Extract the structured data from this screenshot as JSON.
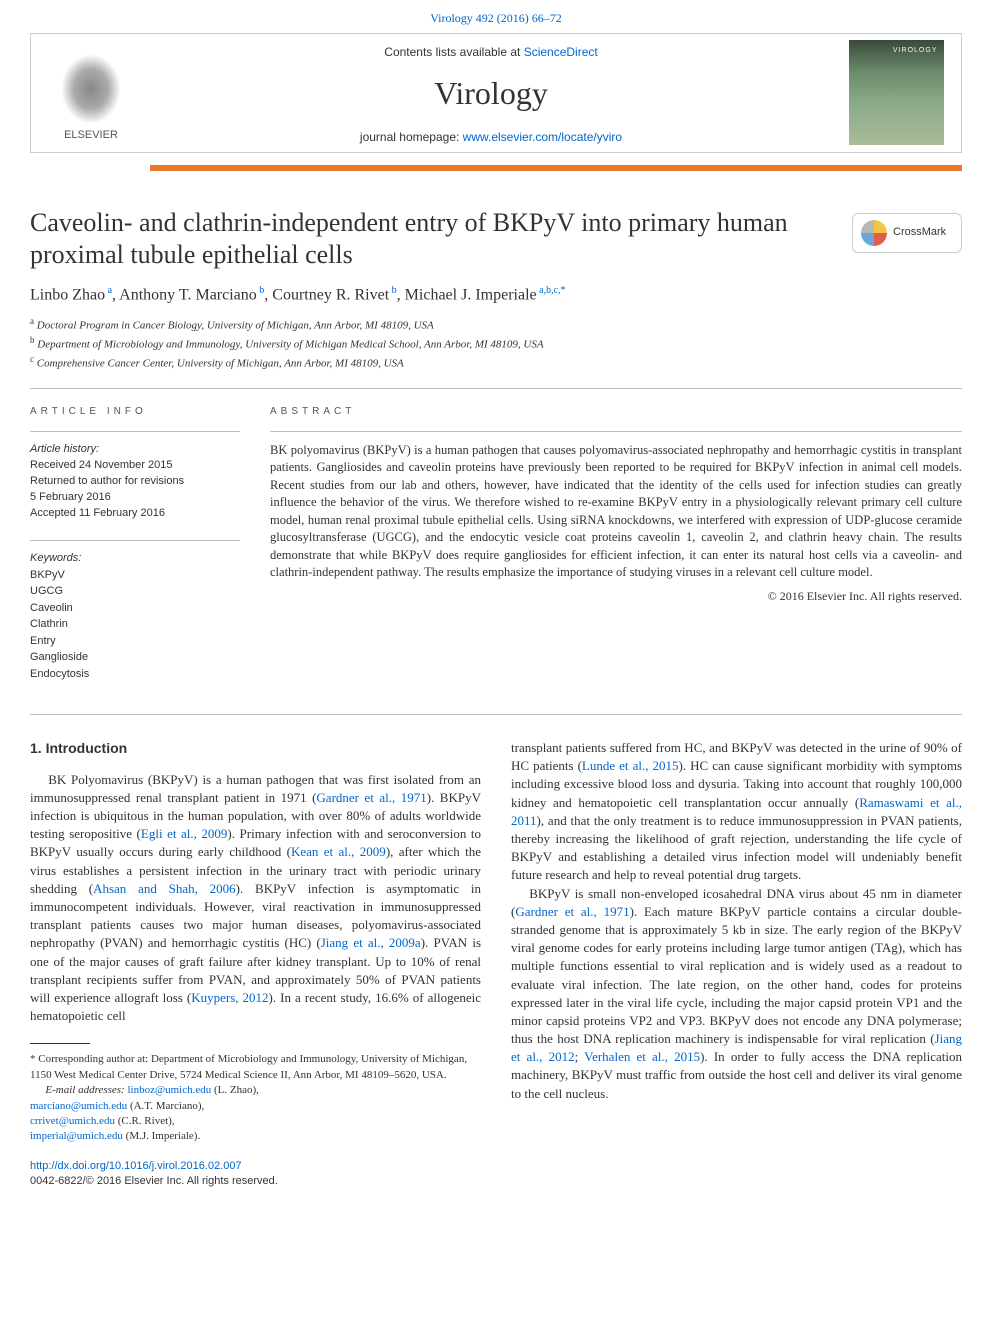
{
  "colors": {
    "link": "#0066cc",
    "orange": "#e8792c",
    "rule": "#bbbbbb",
    "text": "#333333"
  },
  "header": {
    "citation": "Virology 492 (2016) 66–72",
    "contents_prefix": "Contents lists available at ",
    "contents_link": "ScienceDirect",
    "journal": "Virology",
    "homepage_prefix": "journal homepage: ",
    "homepage_link": "www.elsevier.com/locate/yviro",
    "publisher": "ELSEVIER",
    "cover_label": "VIROLOGY"
  },
  "crossmark": {
    "label": "CrossMark"
  },
  "title": "Caveolin- and clathrin-independent entry of BKPyV into primary human proximal tubule epithelial cells",
  "authors_html": "Linbo Zhao <sup>a</sup>, Anthony T. Marciano <sup>b</sup>, Courtney R. Rivet <sup>b</sup>, Michael J. Imperiale <sup>a,b,c,*</sup>",
  "authors": [
    {
      "name": "Linbo Zhao",
      "sup": "a"
    },
    {
      "name": "Anthony T. Marciano",
      "sup": "b"
    },
    {
      "name": "Courtney R. Rivet",
      "sup": "b"
    },
    {
      "name": "Michael J. Imperiale",
      "sup": "a,b,c,*"
    }
  ],
  "affiliations": [
    {
      "sup": "a",
      "text": "Doctoral Program in Cancer Biology, University of Michigan, Ann Arbor, MI 48109, USA"
    },
    {
      "sup": "b",
      "text": "Department of Microbiology and Immunology, University of Michigan Medical School, Ann Arbor, MI 48109, USA"
    },
    {
      "sup": "c",
      "text": "Comprehensive Cancer Center, University of Michigan, Ann Arbor, MI 48109, USA"
    }
  ],
  "article_info": {
    "heading": "ARTICLE INFO",
    "history_label": "Article history:",
    "history": [
      "Received 24 November 2015",
      "Returned to author for revisions",
      "5 February 2016",
      "Accepted 11 February 2016"
    ],
    "keywords_label": "Keywords:",
    "keywords": [
      "BKPyV",
      "UGCG",
      "Caveolin",
      "Clathrin",
      "Entry",
      "Ganglioside",
      "Endocytosis"
    ]
  },
  "abstract": {
    "heading": "ABSTRACT",
    "text": "BK polyomavirus (BKPyV) is a human pathogen that causes polyomavirus-associated nephropathy and hemorrhagic cystitis in transplant patients. Gangliosides and caveolin proteins have previously been reported to be required for BKPyV infection in animal cell models. Recent studies from our lab and others, however, have indicated that the identity of the cells used for infection studies can greatly influence the behavior of the virus. We therefore wished to re-examine BKPyV entry in a physiologically relevant primary cell culture model, human renal proximal tubule epithelial cells. Using siRNA knockdowns, we interfered with expression of UDP-glucose ceramide glucosyltransferase (UGCG), and the endocytic vesicle coat proteins caveolin 1, caveolin 2, and clathrin heavy chain. The results demonstrate that while BKPyV does require gangliosides for efficient infection, it can enter its natural host cells via a caveolin- and clathrin-independent pathway. The results emphasize the importance of studying viruses in a relevant cell culture model.",
    "copyright": "© 2016 Elsevier Inc. All rights reserved."
  },
  "intro": {
    "heading": "1.  Introduction",
    "p1a": "BK Polyomavirus (BKPyV) is a human pathogen that was first isolated from an immunosuppressed renal transplant patient in 1971 (",
    "p1_link1": "Gardner et al., 1971",
    "p1b": "). BKPyV infection is ubiquitous in the human population, with over 80% of adults worldwide testing seropositive (",
    "p1_link2": "Egli et al., 2009",
    "p1c": "). Primary infection with and seroconversion to BKPyV usually occurs during early childhood (",
    "p1_link3": "Kean et al., 2009",
    "p1d": "), after which the virus establishes a persistent infection in the urinary tract with periodic urinary shedding (",
    "p1_link4": "Ahsan and Shah, 2006",
    "p1e": "). BKPyV infection is asymptomatic in immunocompetent individuals. However, viral reactivation in immunosuppressed transplant patients causes two major human diseases, polyomavirus-associated nephropathy (PVAN) and hemorrhagic cystitis (HC) (",
    "p1_link5": "Jiang et al., 2009a",
    "p1f": "). PVAN is one of the major causes of graft failure after kidney transplant. Up to 10% of renal transplant recipients suffer from PVAN, and approximately 50% of PVAN patients will experience allograft loss (",
    "p1_link6": "Kuypers, 2012",
    "p1g": "). In a recent study, 16.6% of allogeneic hematopoietic cell",
    "p2a": "transplant patients suffered from HC, and BKPyV was detected in the urine of 90% of HC patients (",
    "p2_link1": "Lunde et al., 2015",
    "p2b": "). HC can cause significant morbidity with symptoms including excessive blood loss and dysuria. Taking into account that roughly 100,000 kidney and hematopoietic cell transplantation occur annually (",
    "p2_link2": "Ramaswami et al., 2011",
    "p2c": "), and that the only treatment is to reduce immunosuppression in PVAN patients, thereby increasing the likelihood of graft rejection, understanding the life cycle of BKPyV and establishing a detailed virus infection model will undeniably benefit future research and help to reveal potential drug targets.",
    "p3a": "BKPyV is small non-enveloped icosahedral DNA virus about 45 nm in diameter (",
    "p3_link1": "Gardner et al., 1971",
    "p3b": "). Each mature BKPyV particle contains a circular double-stranded genome that is approximately 5 kb in size. The early region of the BKPyV viral genome codes for early proteins including large tumor antigen (TAg), which has multiple functions essential to viral replication and is widely used as a readout to evaluate viral infection. The late region, on the other hand, codes for proteins expressed later in the viral life cycle, including the major capsid protein VP1 and the minor capsid proteins VP2 and VP3. BKPyV does not encode any DNA polymerase; thus the host DNA replication machinery is indispensable for viral replication (",
    "p3_link2": "Jiang et al., 2012",
    "p3c": "; ",
    "p3_link3": "Verhalen et al., 2015",
    "p3d": "). In order to fully access the DNA replication machinery, BKPyV must traffic from outside the host cell and deliver its viral genome to the cell nucleus."
  },
  "corresponding": {
    "star": "* ",
    "text": "Corresponding author at: Department of Microbiology and Immunology, University of Michigan, 1150 West Medical Center Drive, 5724 Medical Science II, Ann Arbor, MI 48109–5620, USA.",
    "email_label": "E-mail addresses: ",
    "emails": [
      {
        "addr": "linboz@umich.edu",
        "who": " (L. Zhao),"
      },
      {
        "addr": "marciano@umich.edu",
        "who": " (A.T. Marciano), "
      },
      {
        "addr": "crrivet@umich.edu",
        "who": " (C.R. Rivet),"
      },
      {
        "addr": "imperial@umich.edu",
        "who": " (M.J. Imperiale)."
      }
    ]
  },
  "footer": {
    "doi": "http://dx.doi.org/10.1016/j.virol.2016.02.007",
    "issn_copy": "0042-6822/© 2016 Elsevier Inc. All rights reserved."
  }
}
